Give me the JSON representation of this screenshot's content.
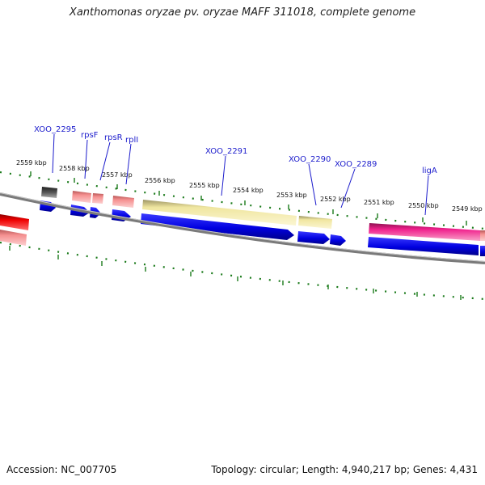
{
  "header": {
    "title": "Xanthomonas oryzae pv. oryzae MAFF 311018, complete genome"
  },
  "footer": {
    "accession": "Accession: NC_007705",
    "topology": "Topology: circular; Length: 4,940,217 bp; Genes: 4,431"
  },
  "ticks": [
    "2559 kbp",
    "2558 kbp",
    "2557 kbp",
    "2556 kbp",
    "2555 kbp",
    "2554 kbp",
    "2553 kbp",
    "2552 kbp",
    "2551 kbp",
    "2550 kbp",
    "2549 kbp"
  ],
  "genes": [
    "XOO_2295",
    "rpsF",
    "rpsR",
    "rplI",
    "XOO_2291",
    "XOO_2290",
    "XOO_2289",
    "ligA"
  ],
  "colors": {
    "backbone": "#808080",
    "cds": "#0000ee",
    "trna_red": "#ee0000",
    "salmon": "#f08080",
    "pale_yellow": "#f0e68c",
    "magenta": "#f0208c",
    "dark_gray": "#505050",
    "tick_green": "#1a7a1a",
    "label_blue": "#1c1ccc"
  }
}
